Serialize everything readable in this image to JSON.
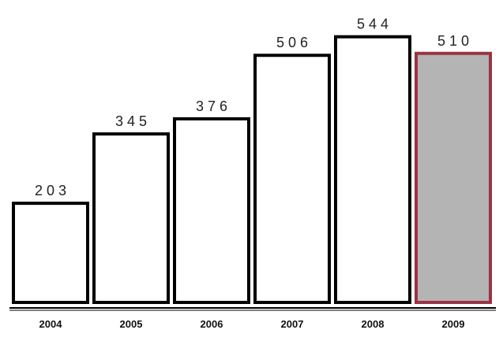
{
  "chart_data": {
    "type": "bar",
    "title": "",
    "xlabel": "",
    "ylabel": "",
    "categories": [
      "2004",
      "2005",
      "2006",
      "2007",
      "2008",
      "2009"
    ],
    "values": [
      203,
      345,
      376,
      506,
      544,
      510
    ],
    "value_labels": [
      "203",
      "345",
      "376",
      "506",
      "544",
      "510"
    ],
    "ylim": [
      0,
      610
    ],
    "grid": false,
    "highlight_index": 5,
    "colors": {
      "bar_fill": "#ffffff",
      "bar_stroke": "#000000",
      "highlight_fill": "#b4b4b4",
      "highlight_stroke": "#9b3344",
      "axis": "#000000"
    }
  }
}
